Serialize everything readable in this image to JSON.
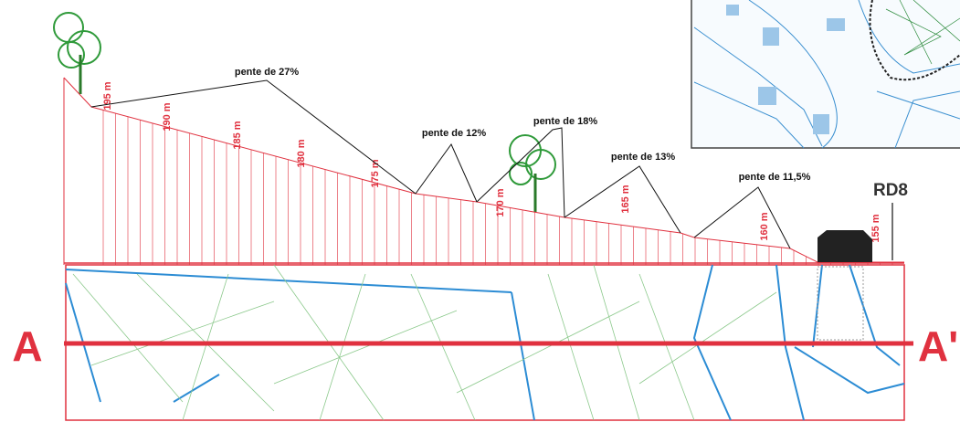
{
  "section": {
    "start": "A",
    "end": "A'"
  },
  "road": "RD8",
  "elevations": [
    "195 m",
    "190 m",
    "185 m",
    "180 m",
    "175 m",
    "170 m",
    "165 m",
    "160 m",
    "155 m"
  ],
  "slopes": [
    "pente de 27%",
    "pente de 12%",
    "pente de 18%",
    "pente de 13%",
    "pente de 11,5%"
  ]
}
